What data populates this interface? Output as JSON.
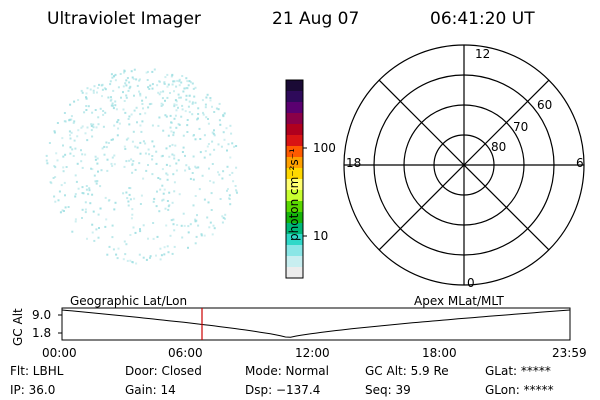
{
  "header": {
    "title": "Ultraviolet Imager",
    "date": "21 Aug 07",
    "time": "06:41:20 UT"
  },
  "colorbar": {
    "unit_label": "photon cm⁻²s⁻¹",
    "tick_100": "100",
    "tick_10": "10",
    "colors": [
      "#1a0a35",
      "#2e0a5a",
      "#5a0070",
      "#8a0048",
      "#b0001e",
      "#d81414",
      "#ff5a00",
      "#ffa000",
      "#ffd800",
      "#ffff70",
      "#c8ff30",
      "#5ad800",
      "#16b40a",
      "#00b87a",
      "#30d8c8",
      "#8ae6e6",
      "#c8eef0",
      "#ececec"
    ]
  },
  "polar": {
    "label_12": "12",
    "label_6": "6",
    "label_18": "18",
    "label_0": "0",
    "label_60": "60",
    "label_70": "70",
    "label_80": "80"
  },
  "altitude_plot": {
    "axis_label": "GC Alt",
    "ymax_label": "9.0",
    "ymin_label": "1.8",
    "left_caption": "Geographic Lat/Lon",
    "right_caption": "Apex MLat/MLT",
    "x_ticks": [
      "00:00",
      "06:00",
      "12:00",
      "18:00",
      "23:59"
    ]
  },
  "footer": {
    "flt": "Flt: LBHL",
    "door": "Door: Closed",
    "mode": "Mode: Normal",
    "gcalt": "GC Alt: 5.9 Re",
    "glat": "GLat: *****",
    "ip": "IP: 36.0",
    "gain": "Gain: 14",
    "dsp": "Dsp: −137.4",
    "seq": "Seq: 39",
    "glon": "GLon: *****"
  },
  "colors": {
    "marker": "#cc0000",
    "speckle": "#9fdfe2"
  }
}
